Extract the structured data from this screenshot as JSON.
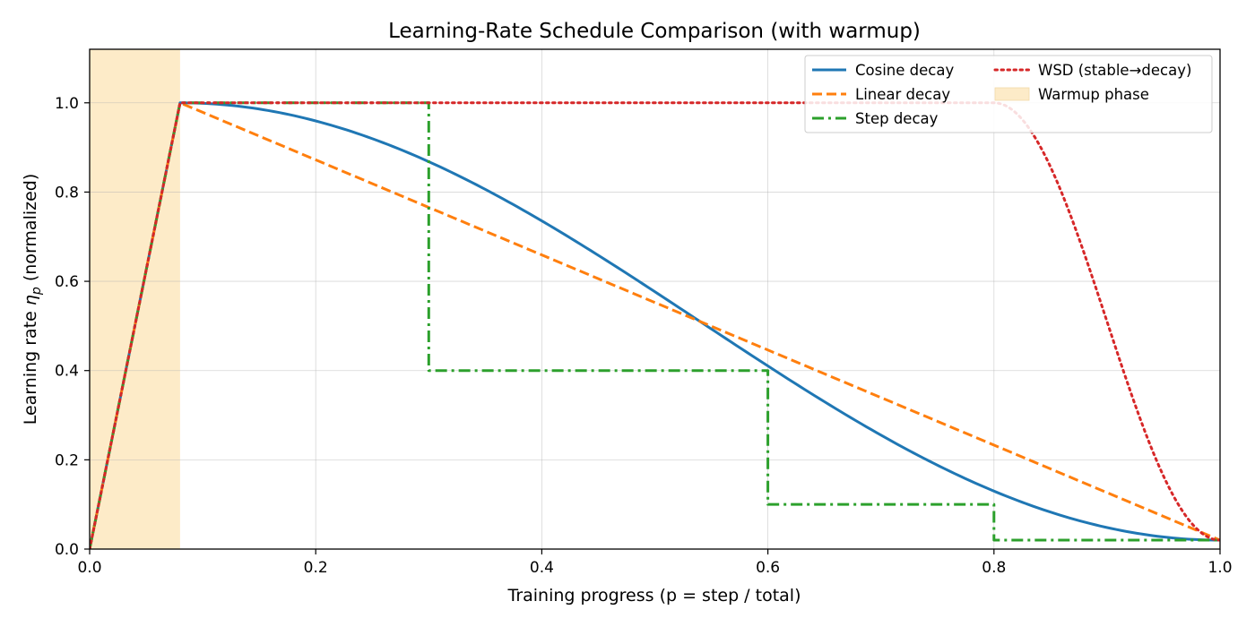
{
  "chart_data": {
    "type": "line",
    "title": "Learning-Rate Schedule Comparison (with warmup)",
    "xlabel": "Training progress (p = step / total)",
    "ylabel_prefix": "Learning rate ",
    "ylabel_symbol": "η",
    "ylabel_subscript": "p",
    "ylabel_suffix": " (normalized)",
    "xlim": [
      0,
      1
    ],
    "ylim": [
      0,
      1.12
    ],
    "xticks": [
      0.0,
      0.2,
      0.4,
      0.6,
      0.8,
      1.0
    ],
    "yticks": [
      0.0,
      0.2,
      0.4,
      0.6,
      0.8,
      1.0
    ],
    "xtick_labels": [
      "0.0",
      "0.2",
      "0.4",
      "0.6",
      "0.8",
      "1.0"
    ],
    "ytick_labels": [
      "0.0",
      "0.2",
      "0.4",
      "0.6",
      "0.8",
      "1.0"
    ],
    "grid": true,
    "legend_position": "upper right",
    "warmup_end": 0.08,
    "min_lr": 0.02,
    "shaded_region": {
      "name": "Warmup phase",
      "x": [
        0.0,
        0.08
      ],
      "color": "#fdebc8"
    },
    "series": [
      {
        "name": "Cosine decay",
        "color": "#1f77b4",
        "dash": "solid",
        "points": [
          [
            0.0,
            0.0
          ],
          [
            0.08,
            1.0
          ],
          [
            0.1,
            0.9988
          ],
          [
            0.15,
            0.9856
          ],
          [
            0.2,
            0.9582
          ],
          [
            0.25,
            0.9178
          ],
          [
            0.3,
            0.8666
          ],
          [
            0.35,
            0.8061
          ],
          [
            0.4,
            0.7389
          ],
          [
            0.45,
            0.6672
          ],
          [
            0.5,
            0.5937
          ],
          [
            0.55,
            0.521
          ],
          [
            0.6,
            0.4514
          ],
          [
            0.65,
            0.3833
          ],
          [
            0.7,
            0.3179
          ],
          [
            0.75,
            0.25
          ],
          [
            0.8,
            0.1263
          ],
          [
            0.85,
            0.0779
          ],
          [
            0.9,
            0.0432
          ],
          [
            0.95,
            0.0246
          ],
          [
            1.0,
            0.02
          ]
        ]
      },
      {
        "name": "Linear decay",
        "color": "#ff7f0e",
        "dash": "dashed",
        "points": [
          [
            0.0,
            0.0
          ],
          [
            0.08,
            1.0
          ],
          [
            1.0,
            0.02
          ]
        ]
      },
      {
        "name": "Step decay",
        "color": "#2ca02c",
        "dash": "dashdot",
        "points": [
          [
            0.0,
            0.0
          ],
          [
            0.08,
            1.0
          ],
          [
            0.3,
            1.0
          ],
          [
            0.3,
            0.4
          ],
          [
            0.6,
            0.4
          ],
          [
            0.6,
            0.1
          ],
          [
            0.8,
            0.1
          ],
          [
            0.8,
            0.02
          ],
          [
            1.0,
            0.02
          ]
        ]
      },
      {
        "name": "WSD (stable→decay)",
        "color": "#d62728",
        "dash": "dotted",
        "points": [
          [
            0.0,
            0.0
          ],
          [
            0.08,
            1.0
          ],
          [
            0.8,
            1.0
          ],
          [
            0.82,
            0.988
          ],
          [
            0.84,
            0.934
          ],
          [
            0.86,
            0.84
          ],
          [
            0.88,
            0.712
          ],
          [
            0.9,
            0.559
          ],
          [
            0.92,
            0.401
          ],
          [
            0.94,
            0.256
          ],
          [
            0.96,
            0.137
          ],
          [
            0.98,
            0.055
          ],
          [
            1.0,
            0.02
          ]
        ]
      }
    ],
    "legend": [
      {
        "label": "Cosine decay",
        "kind": "line",
        "color": "#1f77b4",
        "dash": "solid"
      },
      {
        "label": "Linear decay",
        "kind": "line",
        "color": "#ff7f0e",
        "dash": "dashed"
      },
      {
        "label": "Step decay",
        "kind": "line",
        "color": "#2ca02c",
        "dash": "dashdot"
      },
      {
        "label": "WSD (stable→decay)",
        "kind": "line",
        "color": "#d62728",
        "dash": "dotted"
      },
      {
        "label": "Warmup phase",
        "kind": "patch",
        "color": "#fdebc8"
      }
    ]
  }
}
